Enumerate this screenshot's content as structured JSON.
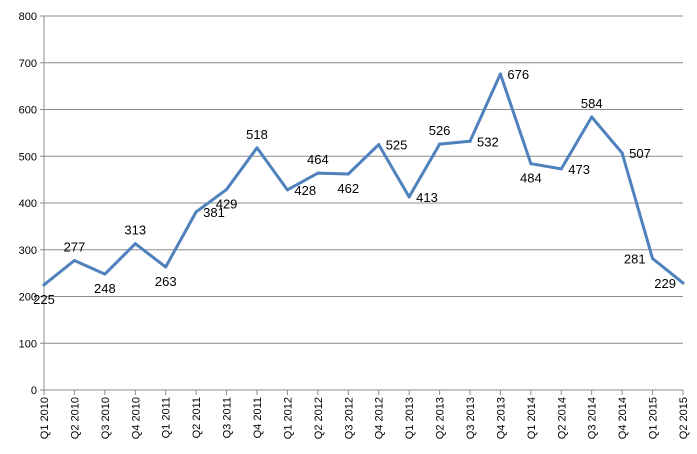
{
  "chart_data": {
    "type": "line",
    "title": "",
    "xlabel": "",
    "ylabel": "",
    "ylim": [
      0,
      800
    ],
    "yticks": [
      0,
      100,
      200,
      300,
      400,
      500,
      600,
      700,
      800
    ],
    "grid": "horizontal",
    "legend": "none",
    "series_color": "#4F81BD",
    "categories": [
      "Q1 2010",
      "Q2 2010",
      "Q3 2010",
      "Q4 2010",
      "Q1 2011",
      "Q2 2011",
      "Q3 2011",
      "Q4 2011",
      "Q1 2012",
      "Q2 2012",
      "Q3 2012",
      "Q4 2012",
      "Q1 2013",
      "Q2 2013",
      "Q3 2013",
      "Q4 2013",
      "Q1 2014",
      "Q2 2014",
      "Q3 2014",
      "Q4 2014",
      "Q1 2015",
      "Q2 2015"
    ],
    "values": [
      225,
      277,
      248,
      313,
      263,
      381,
      429,
      518,
      428,
      464,
      462,
      525,
      413,
      526,
      532,
      676,
      484,
      473,
      584,
      507,
      281,
      229
    ],
    "label_positions": [
      "below",
      "above",
      "below",
      "above",
      "below",
      "right",
      "below",
      "above",
      "right",
      "above",
      "below",
      "right",
      "right",
      "above",
      "right",
      "right",
      "below",
      "right",
      "above",
      "right",
      "left",
      "left"
    ]
  }
}
